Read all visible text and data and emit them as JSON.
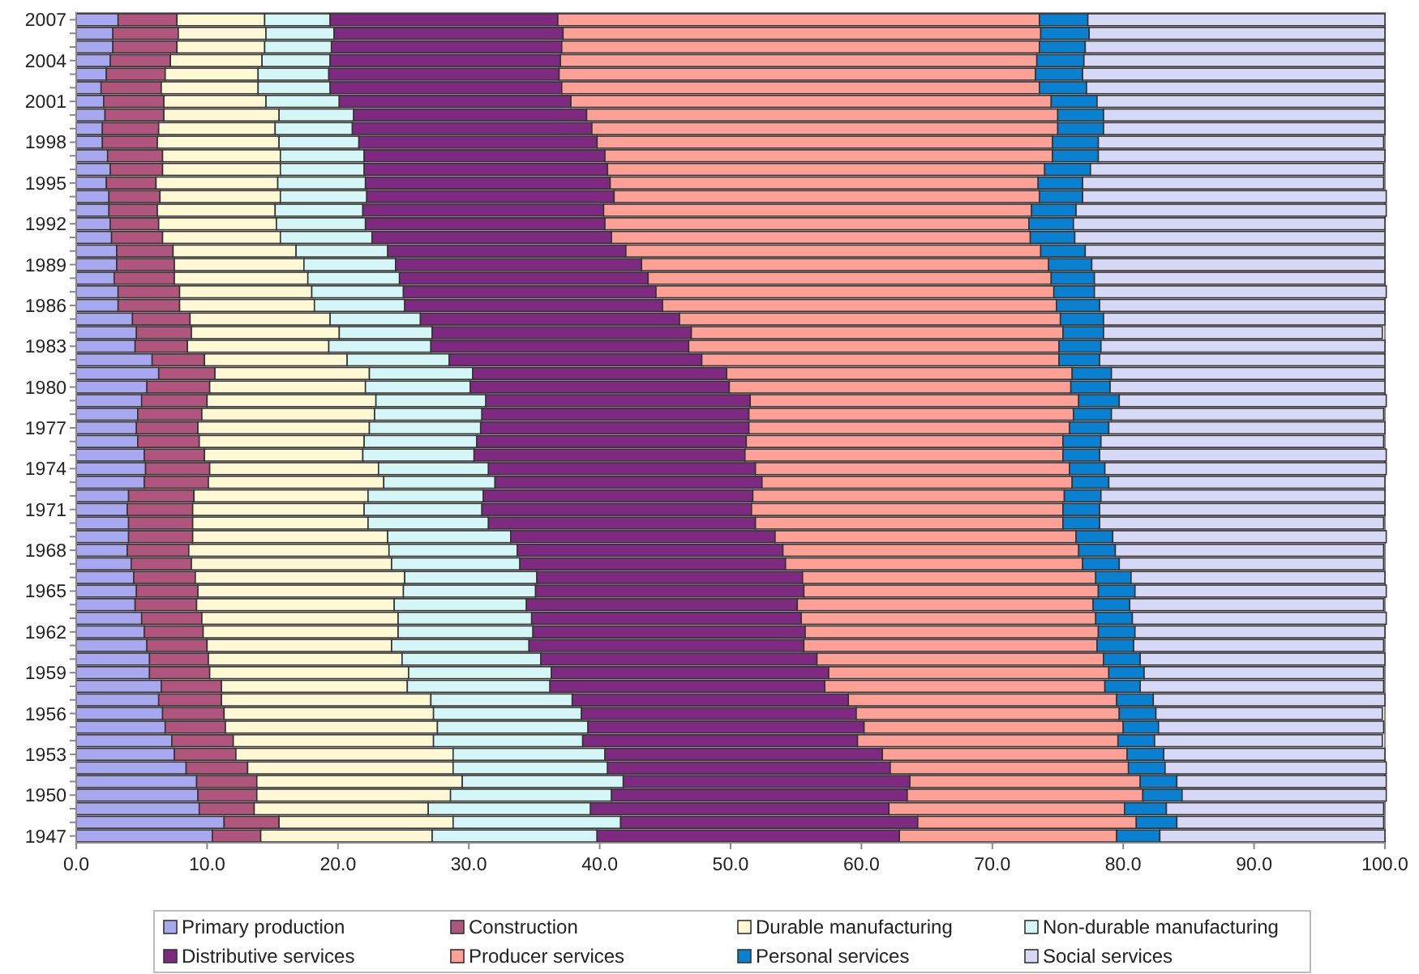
{
  "chart_data": {
    "type": "bar",
    "orientation": "horizontal",
    "stacked": true,
    "legend": "bottom",
    "grid": false,
    "categories": [
      "2007",
      null,
      null,
      "2004",
      null,
      null,
      "2001",
      null,
      null,
      "1998",
      null,
      null,
      "1995",
      null,
      null,
      "1992",
      null,
      null,
      "1989",
      null,
      null,
      "1986",
      null,
      null,
      "1983",
      null,
      null,
      "1980",
      null,
      null,
      "1977",
      null,
      null,
      "1974",
      null,
      null,
      "1971",
      null,
      null,
      "1968",
      null,
      null,
      "1965",
      null,
      null,
      "1962",
      null,
      null,
      "1959",
      null,
      null,
      "1956",
      null,
      null,
      "1953",
      null,
      null,
      "1950",
      null,
      null,
      "1947"
    ],
    "xlim": [
      0,
      100
    ],
    "xticks": [
      {
        "value": 0,
        "label": "0.0"
      },
      {
        "value": 10,
        "label": "10.0"
      },
      {
        "value": 20,
        "label": "20.0"
      },
      {
        "value": 30,
        "label": "30.0"
      },
      {
        "value": 40,
        "label": "40.0"
      },
      {
        "value": 50,
        "label": "50.0"
      },
      {
        "value": 60,
        "label": "60.0"
      },
      {
        "value": 70,
        "label": "70.0"
      },
      {
        "value": 80,
        "label": "80.0"
      },
      {
        "value": 90,
        "label": "90.0"
      },
      {
        "value": 100,
        "label": "100.0"
      }
    ],
    "series": [
      {
        "name": "Primary production",
        "color": "#a8a8f0",
        "values": [
          3.2,
          2.8,
          2.8,
          2.6,
          2.3,
          1.9,
          2.1,
          2.2,
          2.0,
          2.0,
          2.4,
          2.6,
          2.3,
          2.5,
          2.5,
          2.6,
          2.7,
          3.1,
          3.1,
          2.9,
          3.2,
          3.2,
          4.3,
          4.6,
          4.5,
          5.8,
          6.3,
          5.4,
          5.0,
          4.7,
          4.6,
          4.7,
          5.2,
          5.3,
          5.2,
          4.0,
          3.9,
          4.0,
          4.0,
          3.9,
          4.2,
          4.4,
          4.6,
          4.5,
          5.0,
          5.2,
          5.4,
          5.6,
          5.6,
          6.5,
          6.3,
          6.6,
          6.8,
          7.3,
          7.5,
          8.4,
          9.2,
          9.3,
          9.4,
          11.3,
          10.4
        ]
      },
      {
        "name": "Construction",
        "color": "#b0567c",
        "values": [
          4.5,
          5.0,
          4.9,
          4.6,
          4.5,
          4.6,
          4.6,
          4.5,
          4.3,
          4.2,
          4.2,
          4.0,
          3.8,
          3.9,
          3.7,
          3.7,
          3.9,
          4.3,
          4.4,
          4.6,
          4.7,
          4.7,
          4.4,
          4.2,
          4.0,
          4.0,
          4.3,
          4.8,
          5.0,
          4.9,
          4.7,
          4.7,
          4.6,
          4.9,
          4.9,
          5.0,
          5.0,
          4.9,
          4.9,
          4.7,
          4.6,
          4.7,
          4.7,
          4.7,
          4.6,
          4.5,
          4.6,
          4.5,
          4.6,
          4.6,
          4.8,
          4.7,
          4.6,
          4.7,
          4.7,
          4.7,
          4.6,
          4.5,
          4.2,
          4.2,
          3.7
        ]
      },
      {
        "name": "Durable manufacturing",
        "color": "#fff8d4",
        "values": [
          6.7,
          6.7,
          6.7,
          7.0,
          7.1,
          7.4,
          7.8,
          8.8,
          8.9,
          9.3,
          9.0,
          9.0,
          9.3,
          9.2,
          9.0,
          9.0,
          9.0,
          9.4,
          9.9,
          10.2,
          10.1,
          10.3,
          10.7,
          11.3,
          10.8,
          10.9,
          11.8,
          11.9,
          12.9,
          13.2,
          13.1,
          12.6,
          12.1,
          12.9,
          13.4,
          13.3,
          13.1,
          13.4,
          14.9,
          15.3,
          15.3,
          16.0,
          15.7,
          15.1,
          15.0,
          14.9,
          14.1,
          14.8,
          15.2,
          14.2,
          16.0,
          16.0,
          16.2,
          15.3,
          16.6,
          15.7,
          15.7,
          14.8,
          13.3,
          13.3,
          13.1
        ]
      },
      {
        "name": "Non-durable manufacturing",
        "color": "#d4f6f6",
        "values": [
          5.0,
          5.2,
          5.1,
          5.2,
          5.4,
          5.5,
          5.6,
          5.7,
          5.9,
          6.1,
          6.4,
          6.4,
          6.7,
          6.6,
          6.7,
          6.8,
          7.0,
          7.0,
          7.0,
          7.0,
          7.0,
          6.9,
          6.9,
          7.1,
          7.8,
          7.8,
          7.9,
          8.0,
          8.4,
          8.2,
          8.5,
          8.6,
          8.5,
          8.4,
          8.5,
          8.8,
          9.0,
          9.2,
          9.4,
          9.8,
          9.8,
          10.1,
          10.1,
          10.1,
          10.2,
          10.3,
          10.5,
          10.6,
          10.9,
          10.9,
          10.8,
          11.3,
          11.5,
          11.4,
          11.6,
          11.8,
          12.3,
          12.3,
          12.4,
          12.8,
          12.6
        ]
      },
      {
        "name": "Distributive services",
        "color": "#7e2a80",
        "values": [
          17.4,
          17.5,
          17.6,
          17.6,
          17.6,
          17.7,
          17.7,
          17.8,
          18.3,
          18.2,
          18.4,
          18.6,
          18.7,
          18.9,
          18.4,
          18.3,
          18.3,
          18.2,
          18.8,
          19.0,
          19.3,
          19.7,
          19.8,
          19.8,
          19.7,
          19.3,
          19.4,
          19.8,
          20.2,
          20.4,
          20.5,
          20.6,
          20.7,
          20.4,
          20.4,
          20.6,
          20.6,
          20.4,
          20.2,
          20.3,
          20.3,
          20.3,
          20.5,
          20.7,
          20.6,
          20.8,
          21.0,
          21.1,
          21.2,
          21.0,
          21.1,
          21.0,
          21.1,
          21.0,
          21.2,
          21.6,
          21.9,
          22.6,
          22.8,
          22.7,
          23.1
        ]
      },
      {
        "name": "Producer services",
        "color": "#ffa096",
        "values": [
          36.8,
          36.5,
          36.5,
          36.4,
          36.4,
          36.5,
          36.7,
          36.0,
          35.6,
          34.8,
          34.2,
          33.4,
          32.7,
          32.5,
          32.7,
          32.4,
          32.0,
          31.7,
          31.1,
          30.8,
          30.4,
          30.1,
          29.1,
          28.4,
          28.3,
          27.3,
          26.4,
          26.1,
          25.1,
          24.8,
          24.5,
          24.2,
          24.3,
          24.0,
          23.7,
          23.8,
          23.8,
          23.5,
          23.0,
          22.6,
          22.7,
          22.4,
          22.5,
          22.6,
          22.5,
          22.4,
          22.4,
          21.9,
          21.4,
          21.4,
          20.5,
          20.1,
          19.8,
          19.9,
          18.7,
          18.2,
          17.6,
          18.0,
          18.0,
          16.7,
          16.6
        ]
      },
      {
        "name": "Personal services",
        "color": "#0a80d0",
        "values": [
          3.7,
          3.7,
          3.5,
          3.6,
          3.6,
          3.6,
          3.5,
          3.5,
          3.5,
          3.5,
          3.5,
          3.5,
          3.4,
          3.3,
          3.4,
          3.4,
          3.4,
          3.4,
          3.3,
          3.3,
          3.1,
          3.3,
          3.3,
          3.1,
          3.2,
          3.1,
          3.0,
          3.0,
          3.1,
          2.9,
          3.0,
          2.9,
          2.8,
          2.7,
          2.8,
          2.8,
          2.8,
          2.8,
          2.8,
          2.8,
          2.8,
          2.7,
          2.8,
          2.8,
          2.8,
          2.8,
          2.8,
          2.8,
          2.7,
          2.7,
          2.8,
          2.8,
          2.7,
          2.8,
          2.8,
          2.8,
          2.8,
          3.0,
          3.2,
          3.1,
          3.3
        ]
      },
      {
        "name": "Social services",
        "color": "#d6d8f6",
        "values": [
          22.7,
          22.6,
          22.9,
          23.0,
          23.1,
          22.8,
          22.0,
          21.5,
          21.5,
          21.8,
          21.9,
          22.4,
          23.0,
          23.2,
          23.7,
          23.8,
          23.7,
          22.9,
          22.4,
          22.2,
          22.3,
          21.8,
          21.5,
          21.3,
          21.7,
          21.8,
          20.9,
          21.0,
          20.4,
          20.8,
          21.1,
          21.6,
          21.9,
          21.5,
          21.1,
          21.7,
          21.8,
          21.7,
          20.9,
          20.5,
          20.2,
          19.4,
          19.2,
          19.4,
          19.4,
          19.1,
          19.1,
          18.7,
          18.3,
          18.6,
          17.7,
          17.3,
          17.2,
          17.4,
          16.9,
          16.9,
          16.0,
          15.6,
          16.6,
          15.8,
          17.2
        ]
      }
    ]
  }
}
